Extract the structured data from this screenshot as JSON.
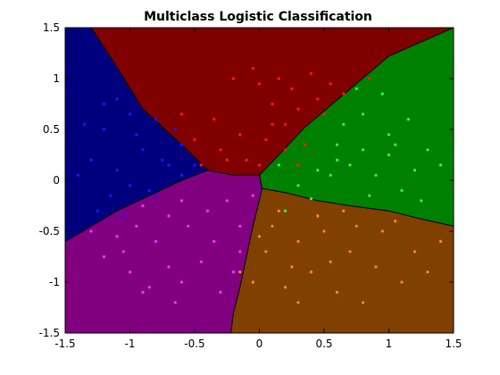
{
  "chart_data": {
    "type": "scatter",
    "title": "Multiclass Logistic Classification",
    "xlabel": "",
    "ylabel": "",
    "xlim": [
      -1.5,
      1.5
    ],
    "ylim": [
      -1.5,
      1.5
    ],
    "xticks": [
      -1.5,
      -1,
      -0.5,
      0,
      0.5,
      1,
      1.5
    ],
    "xtick_labels": [
      "-1.5",
      "-1",
      "-0.5",
      "0",
      "0.5",
      "1",
      "1.5"
    ],
    "yticks": [
      -1.5,
      -1,
      -0.5,
      0,
      0.5,
      1,
      1.5
    ],
    "ytick_labels": [
      "-1.5",
      "-1",
      "-0.5",
      "0",
      "0.5",
      "1",
      "1.5"
    ],
    "grid": false,
    "region_colors": {
      "top": "#800000",
      "left": "#00007f",
      "right": "#008000",
      "bottom-left": "#800080",
      "bottom-right": "#804000"
    },
    "regions": [
      {
        "class": "top",
        "polygon": [
          [
            -0.65,
            1.5
          ],
          [
            1.5,
            1.5
          ],
          [
            1.0,
            1.22
          ],
          [
            0.35,
            0.52
          ],
          [
            0.15,
            0.25
          ],
          [
            0.0,
            0.05
          ],
          [
            -0.2,
            0.05
          ],
          [
            -0.4,
            0.1
          ],
          [
            -0.6,
            0.35
          ],
          [
            -0.9,
            0.7
          ],
          [
            -1.12,
            1.15
          ],
          [
            -1.3,
            1.5
          ]
        ]
      },
      {
        "class": "left",
        "polygon": [
          [
            -1.5,
            1.5
          ],
          [
            -1.3,
            1.5
          ],
          [
            -1.12,
            1.15
          ],
          [
            -0.9,
            0.7
          ],
          [
            -0.6,
            0.35
          ],
          [
            -0.4,
            0.1
          ],
          [
            -0.6,
            0.0
          ],
          [
            -0.85,
            -0.15
          ],
          [
            -1.1,
            -0.3
          ],
          [
            -1.3,
            -0.45
          ],
          [
            -1.5,
            -0.6
          ]
        ]
      },
      {
        "class": "right",
        "polygon": [
          [
            1.5,
            1.5
          ],
          [
            1.5,
            -0.45
          ],
          [
            1.25,
            -0.38
          ],
          [
            1.0,
            -0.3
          ],
          [
            0.7,
            -0.25
          ],
          [
            0.45,
            -0.2
          ],
          [
            0.2,
            -0.12
          ],
          [
            0.02,
            -0.08
          ],
          [
            0.0,
            0.05
          ],
          [
            0.15,
            0.25
          ],
          [
            0.35,
            0.52
          ],
          [
            1.0,
            1.22
          ]
        ]
      },
      {
        "class": "bottom-left",
        "polygon": [
          [
            -1.5,
            -0.6
          ],
          [
            -1.3,
            -0.45
          ],
          [
            -1.1,
            -0.3
          ],
          [
            -0.85,
            -0.15
          ],
          [
            -0.6,
            0.0
          ],
          [
            -0.4,
            0.1
          ],
          [
            -0.2,
            0.05
          ],
          [
            0.0,
            0.05
          ],
          [
            0.02,
            -0.08
          ],
          [
            0.0,
            -0.2
          ],
          [
            -0.05,
            -0.45
          ],
          [
            -0.1,
            -0.75
          ],
          [
            -0.15,
            -1.05
          ],
          [
            -0.2,
            -1.3
          ],
          [
            -0.22,
            -1.5
          ],
          [
            -1.5,
            -1.5
          ]
        ]
      },
      {
        "class": "bottom-right",
        "polygon": [
          [
            -0.22,
            -1.5
          ],
          [
            -0.2,
            -1.3
          ],
          [
            -0.15,
            -1.05
          ],
          [
            -0.1,
            -0.75
          ],
          [
            -0.05,
            -0.45
          ],
          [
            0.0,
            -0.2
          ],
          [
            0.02,
            -0.08
          ],
          [
            0.2,
            -0.12
          ],
          [
            0.45,
            -0.2
          ],
          [
            0.7,
            -0.25
          ],
          [
            1.0,
            -0.3
          ],
          [
            1.25,
            -0.38
          ],
          [
            1.5,
            -0.45
          ],
          [
            1.5,
            -1.5
          ]
        ]
      }
    ],
    "series": [
      {
        "color": "#ff1a1a",
        "points": [
          [
            -0.2,
            1.0
          ],
          [
            -0.05,
            1.1
          ],
          [
            0.0,
            0.95
          ],
          [
            0.1,
            0.75
          ],
          [
            0.2,
            0.55
          ],
          [
            -0.35,
            0.6
          ],
          [
            -0.5,
            0.4
          ],
          [
            -0.3,
            0.3
          ],
          [
            -0.15,
            0.45
          ],
          [
            0.05,
            0.4
          ],
          [
            0.25,
            0.9
          ],
          [
            0.3,
            0.7
          ],
          [
            0.15,
            1.0
          ],
          [
            0.4,
            1.05
          ],
          [
            0.45,
            0.8
          ],
          [
            0.5,
            0.65
          ],
          [
            -0.1,
            0.2
          ],
          [
            0.0,
            0.15
          ],
          [
            0.1,
            0.55
          ],
          [
            -0.25,
            0.2
          ],
          [
            0.55,
            0.95
          ],
          [
            0.65,
            0.85
          ],
          [
            0.35,
            0.35
          ],
          [
            0.2,
            0.3
          ],
          [
            -0.45,
            0.15
          ],
          [
            0.85,
            1.0
          ],
          [
            -0.6,
            0.65
          ],
          [
            0.3,
            0.15
          ]
        ]
      },
      {
        "color": "#1a1aff",
        "points": [
          [
            -1.2,
            0.5
          ],
          [
            -1.1,
            0.8
          ],
          [
            -1.0,
            0.65
          ],
          [
            -1.3,
            0.2
          ],
          [
            -0.8,
            0.6
          ],
          [
            -0.9,
            0.3
          ],
          [
            -0.75,
            0.2
          ],
          [
            -1.1,
            0.1
          ],
          [
            -1.4,
            0.05
          ],
          [
            -0.6,
            0.35
          ],
          [
            -0.7,
            0.15
          ],
          [
            -1.0,
            -0.05
          ],
          [
            -1.25,
            -0.3
          ],
          [
            -1.05,
            -0.35
          ],
          [
            -0.85,
            -0.1
          ],
          [
            -0.6,
            0.05
          ],
          [
            -0.5,
            0.15
          ],
          [
            -0.8,
            -0.15
          ],
          [
            -0.95,
            0.45
          ],
          [
            -1.2,
            0.75
          ],
          [
            -1.35,
            0.55
          ],
          [
            -0.65,
            0.5
          ],
          [
            -1.15,
            -0.15
          ]
        ]
      },
      {
        "color": "#33ff33",
        "points": [
          [
            0.6,
            0.2
          ],
          [
            0.8,
            0.3
          ],
          [
            1.0,
            0.25
          ],
          [
            1.2,
            0.1
          ],
          [
            0.9,
            0.05
          ],
          [
            0.7,
            0.15
          ],
          [
            1.1,
            -0.1
          ],
          [
            0.85,
            -0.15
          ],
          [
            0.45,
            0.1
          ],
          [
            0.55,
            0.05
          ],
          [
            1.3,
            0.3
          ],
          [
            1.0,
            0.45
          ],
          [
            0.8,
            0.65
          ],
          [
            0.95,
            0.85
          ],
          [
            1.15,
            0.6
          ],
          [
            0.75,
            0.9
          ],
          [
            1.05,
            0.35
          ],
          [
            0.6,
            0.35
          ],
          [
            0.3,
            -0.05
          ],
          [
            0.15,
            0.15
          ],
          [
            1.25,
            -0.2
          ],
          [
            0.65,
            0.55
          ],
          [
            1.4,
            0.15
          ],
          [
            0.4,
            -0.18
          ],
          [
            0.2,
            -0.3
          ]
        ]
      },
      {
        "color": "#ff33ff",
        "points": [
          [
            -1.2,
            -0.75
          ],
          [
            -1.0,
            -0.9
          ],
          [
            -0.9,
            -1.1
          ],
          [
            -0.7,
            -0.85
          ],
          [
            -0.6,
            -1.0
          ],
          [
            -0.8,
            -0.6
          ],
          [
            -0.55,
            -0.45
          ],
          [
            -0.35,
            -0.6
          ],
          [
            -0.45,
            -0.8
          ],
          [
            -0.2,
            -0.9
          ],
          [
            -0.15,
            -0.7
          ],
          [
            -1.1,
            -0.55
          ],
          [
            -0.95,
            -0.45
          ],
          [
            -0.7,
            -0.35
          ],
          [
            -0.4,
            -0.3
          ],
          [
            -0.25,
            -0.2
          ],
          [
            -0.6,
            -0.2
          ],
          [
            -0.9,
            -0.25
          ],
          [
            -1.3,
            -0.5
          ],
          [
            -0.85,
            -1.05
          ],
          [
            -0.65,
            -1.2
          ],
          [
            -0.05,
            -0.15
          ],
          [
            -0.3,
            -1.1
          ],
          [
            -1.05,
            -0.7
          ],
          [
            -0.15,
            -0.45
          ]
        ]
      },
      {
        "color": "#ff8c1a",
        "points": [
          [
            0.1,
            -0.45
          ],
          [
            0.3,
            -0.6
          ],
          [
            0.5,
            -0.5
          ],
          [
            0.7,
            -0.7
          ],
          [
            0.9,
            -0.85
          ],
          [
            1.1,
            -1.0
          ],
          [
            0.4,
            -0.9
          ],
          [
            0.2,
            -1.05
          ],
          [
            0.6,
            -1.1
          ],
          [
            0.8,
            -1.2
          ],
          [
            1.2,
            -0.7
          ],
          [
            1.4,
            -0.6
          ],
          [
            0.95,
            -0.5
          ],
          [
            0.05,
            -0.7
          ],
          [
            -0.05,
            -1.0
          ],
          [
            0.3,
            -1.2
          ],
          [
            0.15,
            -0.3
          ],
          [
            0.45,
            -0.35
          ],
          [
            1.05,
            -0.4
          ],
          [
            0.75,
            -0.45
          ],
          [
            0.55,
            -0.8
          ],
          [
            1.3,
            -0.9
          ],
          [
            0.25,
            -0.85
          ],
          [
            0.65,
            -0.3
          ],
          [
            -0.15,
            -0.9
          ],
          [
            0.0,
            -0.55
          ]
        ]
      }
    ]
  }
}
